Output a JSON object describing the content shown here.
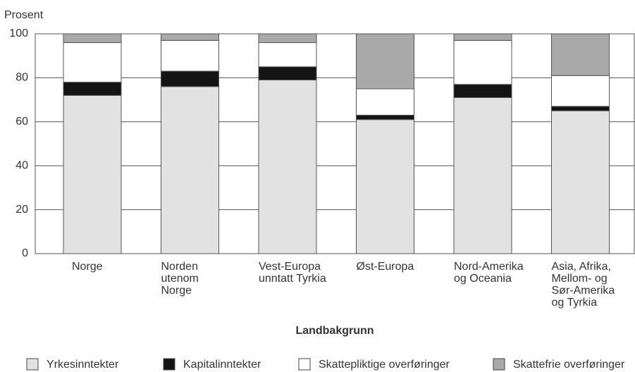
{
  "chart_data": {
    "type": "stacked_bar",
    "y_axis_label": "Prosent",
    "x_axis_label": "Landbakgrunn",
    "categories": [
      "Norge",
      "Norden utenom\nNorge",
      "Vest-Europa\nunntatt Tyrkia",
      "Øst-Europa",
      "Nord-Amerika\nog Oceania",
      "Asia, Afrika,\nMellom- og\nSør-Amerika\nog Tyrkia"
    ],
    "series": [
      {
        "name": "Yrkesinntekter",
        "color": "#e2e2e2",
        "values": [
          72,
          76,
          79,
          61,
          71,
          65
        ]
      },
      {
        "name": "Kapitalinntekter",
        "color": "#141414",
        "values": [
          6,
          7,
          6,
          2,
          6,
          2
        ]
      },
      {
        "name": "Skattepliktige overføringer",
        "color": "#ffffff",
        "values": [
          18,
          14,
          11,
          12,
          20,
          14
        ]
      },
      {
        "name": "Skattefrie overføringer",
        "color": "#a9a9a9",
        "values": [
          4,
          3,
          4,
          25,
          3,
          19
        ]
      }
    ],
    "ylim": [
      0,
      100
    ],
    "yticks": [
      0,
      20,
      40,
      60,
      80,
      100
    ],
    "grid": true
  }
}
